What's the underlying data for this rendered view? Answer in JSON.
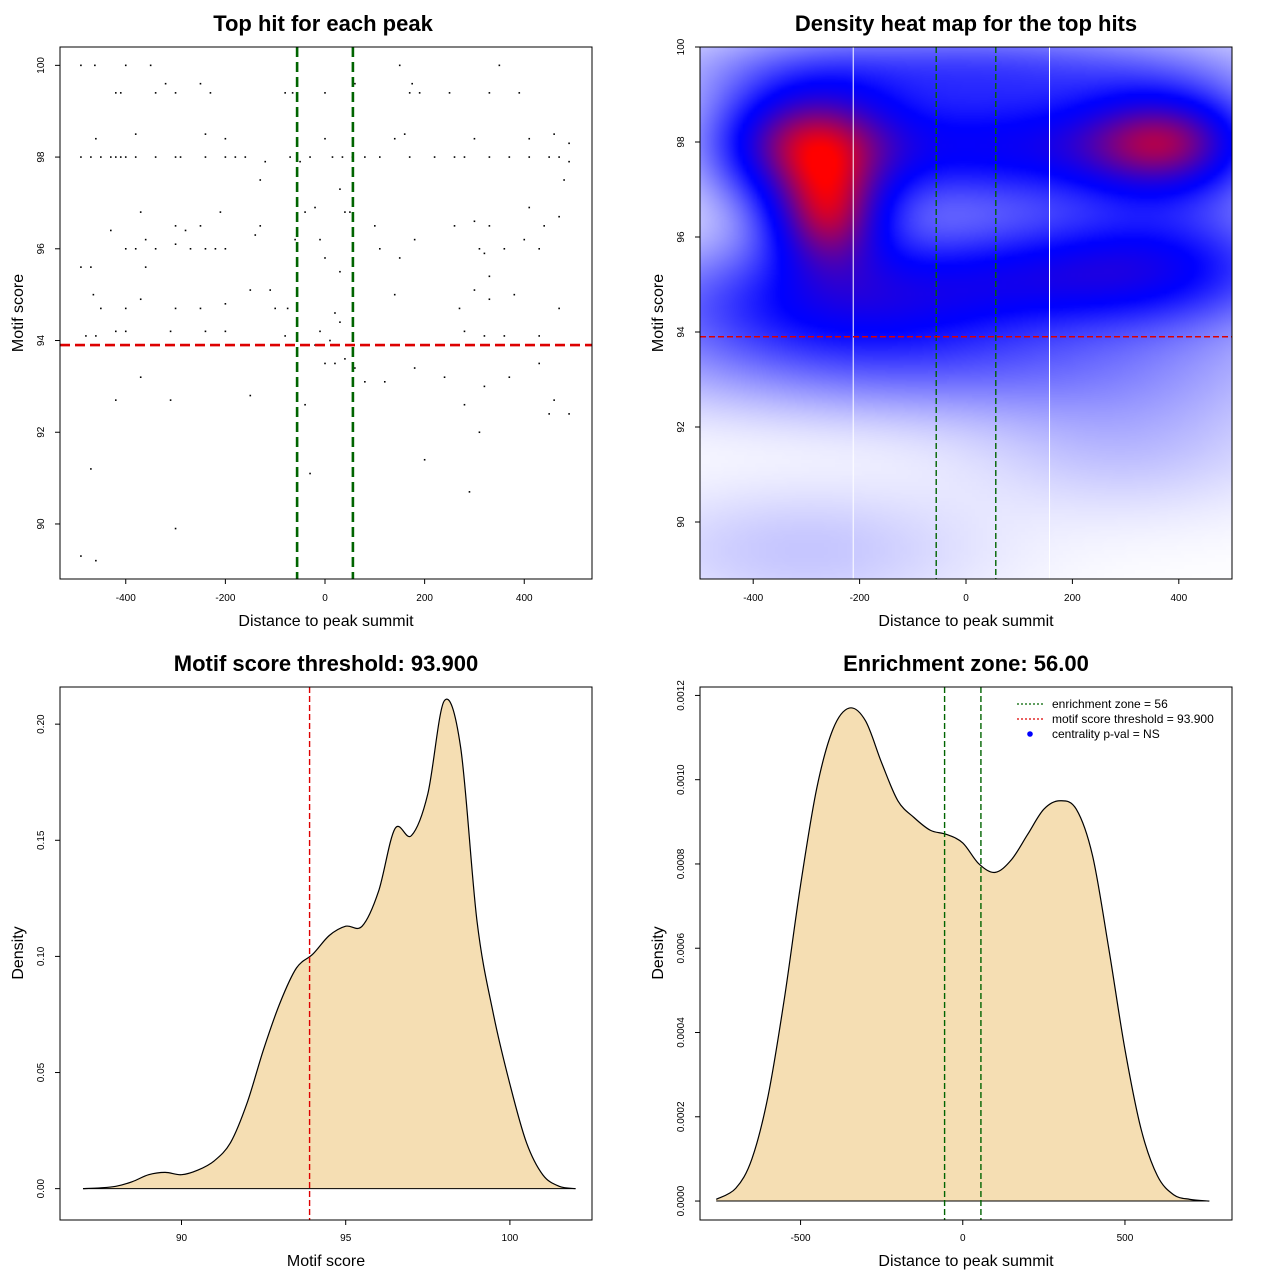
{
  "colors": {
    "green": "#006400",
    "red": "#dd0000",
    "fill": "#f5deb3",
    "hm_low": "#ffffff",
    "hm_mid": "#0000ff",
    "hm_high": "#ff0000"
  },
  "chart_data": [
    {
      "id": "scatter",
      "type": "scatter",
      "title": "Top hit for each peak",
      "xlabel": "Distance to peak summit",
      "ylabel": "Motif score",
      "xlim": [
        -532,
        536
      ],
      "ylim": [
        88.8,
        100.4
      ],
      "xticks": [
        -400,
        -200,
        0,
        200,
        400
      ],
      "xtick_labels": [
        "-400",
        "-200",
        "0",
        "200",
        "400"
      ],
      "yticks": [
        90,
        92,
        94,
        96,
        98,
        100
      ],
      "ytick_labels": [
        "90",
        "92",
        "94",
        "96",
        "98",
        "100"
      ],
      "vlines": [
        -56,
        56
      ],
      "hline": 93.9,
      "points": [
        [
          -490,
          100
        ],
        [
          -462,
          100
        ],
        [
          -400,
          100
        ],
        [
          -350,
          100
        ],
        [
          -320,
          99.6
        ],
        [
          -250,
          99.6
        ],
        [
          -80,
          99.4
        ],
        [
          0,
          99.4
        ],
        [
          60,
          99.6
        ],
        [
          150,
          100
        ],
        [
          175,
          99.6
        ],
        [
          350,
          100
        ],
        [
          -420,
          99.4
        ],
        [
          -410,
          99.4
        ],
        [
          -340,
          99.4
        ],
        [
          -300,
          99.4
        ],
        [
          -230,
          99.4
        ],
        [
          -65,
          99.4
        ],
        [
          170,
          99.4
        ],
        [
          190,
          99.4
        ],
        [
          250,
          99.4
        ],
        [
          330,
          99.4
        ],
        [
          390,
          99.4
        ],
        [
          -460,
          98.4
        ],
        [
          -380,
          98.5
        ],
        [
          -240,
          98.5
        ],
        [
          -200,
          98.4
        ],
        [
          0,
          98.4
        ],
        [
          140,
          98.4
        ],
        [
          160,
          98.5
        ],
        [
          300,
          98.4
        ],
        [
          410,
          98.4
        ],
        [
          460,
          98.5
        ],
        [
          490,
          98.3
        ],
        [
          -490,
          98
        ],
        [
          -470,
          98
        ],
        [
          -450,
          98
        ],
        [
          -430,
          98
        ],
        [
          -420,
          98
        ],
        [
          -410,
          98
        ],
        [
          -400,
          98
        ],
        [
          -380,
          98
        ],
        [
          -340,
          98
        ],
        [
          -300,
          98
        ],
        [
          -290,
          98
        ],
        [
          -240,
          98
        ],
        [
          -200,
          98
        ],
        [
          -180,
          98
        ],
        [
          -160,
          98
        ],
        [
          -120,
          97.9
        ],
        [
          -70,
          98
        ],
        [
          -50,
          97.9
        ],
        [
          -30,
          98
        ],
        [
          15,
          98
        ],
        [
          35,
          98
        ],
        [
          55,
          98
        ],
        [
          80,
          98
        ],
        [
          110,
          98
        ],
        [
          170,
          98
        ],
        [
          220,
          98
        ],
        [
          260,
          98
        ],
        [
          280,
          98
        ],
        [
          330,
          98
        ],
        [
          370,
          98
        ],
        [
          410,
          98
        ],
        [
          450,
          98
        ],
        [
          470,
          98
        ],
        [
          490,
          97.9
        ],
        [
          -130,
          97.5
        ],
        [
          30,
          97.3
        ],
        [
          40,
          96.8
        ],
        [
          50,
          96.8
        ],
        [
          480,
          97.5
        ],
        [
          -370,
          96.8
        ],
        [
          -300,
          96.5
        ],
        [
          -280,
          96.4
        ],
        [
          -250,
          96.5
        ],
        [
          -210,
          96.8
        ],
        [
          -130,
          96.5
        ],
        [
          -40,
          96.8
        ],
        [
          -20,
          96.9
        ],
        [
          100,
          96.5
        ],
        [
          260,
          96.5
        ],
        [
          300,
          96.6
        ],
        [
          330,
          96.5
        ],
        [
          410,
          96.9
        ],
        [
          440,
          96.5
        ],
        [
          470,
          96.7
        ],
        [
          -430,
          96.4
        ],
        [
          -400,
          96
        ],
        [
          -380,
          96
        ],
        [
          -360,
          96.2
        ],
        [
          -340,
          96
        ],
        [
          -300,
          96.1
        ],
        [
          -270,
          96
        ],
        [
          -240,
          96
        ],
        [
          -220,
          96
        ],
        [
          -200,
          96
        ],
        [
          -140,
          96.3
        ],
        [
          -60,
          96.2
        ],
        [
          -10,
          96.2
        ],
        [
          0,
          95.8
        ],
        [
          110,
          96
        ],
        [
          150,
          95.8
        ],
        [
          180,
          96.2
        ],
        [
          310,
          96
        ],
        [
          320,
          95.9
        ],
        [
          360,
          96
        ],
        [
          400,
          96.2
        ],
        [
          430,
          96
        ],
        [
          -490,
          95.6
        ],
        [
          -470,
          95.6
        ],
        [
          -360,
          95.6
        ],
        [
          -110,
          95.1
        ],
        [
          30,
          95.5
        ],
        [
          140,
          95
        ],
        [
          330,
          95.4
        ],
        [
          -465,
          95
        ],
        [
          -450,
          94.7
        ],
        [
          -400,
          94.7
        ],
        [
          -370,
          94.9
        ],
        [
          -300,
          94.7
        ],
        [
          -250,
          94.7
        ],
        [
          -200,
          94.8
        ],
        [
          -150,
          95.1
        ],
        [
          -100,
          94.7
        ],
        [
          -75,
          94.7
        ],
        [
          20,
          94.6
        ],
        [
          30,
          94.4
        ],
        [
          270,
          94.7
        ],
        [
          300,
          95.1
        ],
        [
          330,
          94.9
        ],
        [
          380,
          95
        ],
        [
          470,
          94.7
        ],
        [
          -480,
          94.1
        ],
        [
          -460,
          94.1
        ],
        [
          -420,
          94.2
        ],
        [
          -400,
          94.2
        ],
        [
          -310,
          94.2
        ],
        [
          -240,
          94.2
        ],
        [
          -200,
          94.2
        ],
        [
          -80,
          94.1
        ],
        [
          -10,
          94.2
        ],
        [
          10,
          94
        ],
        [
          280,
          94.2
        ],
        [
          320,
          94.1
        ],
        [
          360,
          94.1
        ],
        [
          430,
          94.1
        ],
        [
          -420,
          92.7
        ],
        [
          -370,
          93.2
        ],
        [
          -310,
          92.7
        ],
        [
          -150,
          92.8
        ],
        [
          -40,
          92.6
        ],
        [
          -20,
          93.9
        ],
        [
          0,
          93.5
        ],
        [
          20,
          93.5
        ],
        [
          40,
          93.6
        ],
        [
          60,
          93.4
        ],
        [
          80,
          93.1
        ],
        [
          120,
          93.1
        ],
        [
          180,
          93.4
        ],
        [
          240,
          93.2
        ],
        [
          280,
          92.6
        ],
        [
          320,
          93
        ],
        [
          370,
          93.2
        ],
        [
          430,
          93.5
        ],
        [
          450,
          92.4
        ],
        [
          460,
          92.7
        ],
        [
          490,
          92.4
        ],
        [
          -30,
          91.1
        ],
        [
          200,
          91.4
        ],
        [
          310,
          92
        ],
        [
          290,
          90.7
        ],
        [
          -470,
          91.2
        ],
        [
          -300,
          89.9
        ],
        [
          -490,
          89.3
        ],
        [
          -460,
          89.2
        ]
      ]
    },
    {
      "id": "heatmap",
      "type": "heatmap",
      "title": "Density heat map for the top hits",
      "xlabel": "Distance to peak summit",
      "ylabel": "Motif score",
      "xlim": [
        -500,
        500
      ],
      "ylim": [
        88.8,
        100
      ],
      "xticks": [
        -400,
        -200,
        0,
        200,
        400
      ],
      "xtick_labels": [
        "-400",
        "-200",
        "0",
        "200",
        "400"
      ],
      "yticks": [
        90,
        92,
        94,
        96,
        98,
        100
      ],
      "ytick_labels": [
        "90",
        "92",
        "94",
        "96",
        "98",
        "100"
      ],
      "vlines": [
        -56,
        56
      ],
      "hline": 93.9,
      "white_vlines": [
        -212,
        157
      ],
      "blobs": [
        {
          "x": -300,
          "y": 98,
          "sx": 120,
          "sy": 0.9,
          "w": 1.0
        },
        {
          "x": -260,
          "y": 96.4,
          "sx": 80,
          "sy": 0.8,
          "w": 0.85
        },
        {
          "x": 380,
          "y": 98,
          "sx": 120,
          "sy": 0.8,
          "w": 0.9
        },
        {
          "x": 60,
          "y": 97.9,
          "sx": 220,
          "sy": 0.9,
          "w": 0.65
        },
        {
          "x": 150,
          "y": 95.2,
          "sx": 260,
          "sy": 0.8,
          "w": 0.45
        },
        {
          "x": -250,
          "y": 94.6,
          "sx": 250,
          "sy": 0.9,
          "w": 0.55
        },
        {
          "x": 380,
          "y": 95.5,
          "sx": 180,
          "sy": 1.0,
          "w": 0.4
        },
        {
          "x": 0,
          "y": 99.6,
          "sx": 340,
          "sy": 0.6,
          "w": 0.35
        },
        {
          "x": 0,
          "y": 93.3,
          "sx": 380,
          "sy": 0.8,
          "w": 0.25
        },
        {
          "x": -300,
          "y": 89.4,
          "sx": 220,
          "sy": 0.9,
          "w": 0.1
        },
        {
          "x": 300,
          "y": 91.8,
          "sx": 200,
          "sy": 1.0,
          "w": 0.12
        }
      ]
    },
    {
      "id": "score_density",
      "type": "area",
      "title": "Motif score threshold: 93.900",
      "xlabel": "Motif score",
      "ylabel": "Density",
      "xlim": [
        86.3,
        102.5
      ],
      "ylim": [
        -0.0135,
        0.216
      ],
      "xticks": [
        90,
        95,
        100
      ],
      "xtick_labels": [
        "90",
        "95",
        "100"
      ],
      "yticks": [
        0,
        0.05,
        0.1,
        0.15,
        0.2
      ],
      "ytick_labels": [
        "0.00",
        "0.05",
        "0.10",
        "0.15",
        "0.20"
      ],
      "vline": 93.9,
      "x": [
        87,
        87.5,
        88,
        88.5,
        89,
        89.5,
        90,
        90.5,
        91,
        91.5,
        92,
        92.5,
        93,
        93.5,
        94,
        94.5,
        95,
        95.5,
        96,
        96.5,
        97,
        97.5,
        98,
        98.5,
        99,
        99.5,
        100,
        100.5,
        101,
        101.5,
        102
      ],
      "y": [
        0,
        0.0003,
        0.001,
        0.003,
        0.006,
        0.007,
        0.006,
        0.008,
        0.012,
        0.02,
        0.037,
        0.06,
        0.08,
        0.095,
        0.101,
        0.109,
        0.113,
        0.113,
        0.128,
        0.155,
        0.152,
        0.17,
        0.21,
        0.19,
        0.115,
        0.075,
        0.045,
        0.02,
        0.006,
        0.001,
        0
      ]
    },
    {
      "id": "distance_density",
      "type": "area",
      "title": "Enrichment zone: 56.00",
      "xlabel": "Distance to peak summit",
      "ylabel": "Density",
      "xlim": [
        -810,
        830
      ],
      "ylim": [
        -4.5e-05,
        0.00122
      ],
      "xticks": [
        -500,
        0,
        500
      ],
      "xtick_labels": [
        "-500",
        "0",
        "500"
      ],
      "yticks": [
        0,
        0.0002,
        0.0004,
        0.0006,
        0.0008,
        0.001,
        0.0012
      ],
      "ytick_labels": [
        "0.0000",
        "0.0002",
        "0.0004",
        "0.0006",
        "0.0008",
        "0.0010",
        "0.0012"
      ],
      "vlines": [
        -56,
        56
      ],
      "x": [
        -760,
        -700,
        -650,
        -600,
        -550,
        -500,
        -450,
        -400,
        -350,
        -300,
        -250,
        -200,
        -150,
        -100,
        -50,
        0,
        50,
        100,
        150,
        200,
        250,
        300,
        350,
        400,
        450,
        500,
        550,
        600,
        650,
        700,
        760
      ],
      "y": [
        4e-06,
        3e-05,
        0.0001,
        0.00025,
        0.00048,
        0.00075,
        0.00098,
        0.00112,
        0.00117,
        0.00114,
        0.00104,
        0.00095,
        0.00091,
        0.00088,
        0.00087,
        0.00085,
        0.0008,
        0.00078,
        0.00081,
        0.00087,
        0.00093,
        0.00095,
        0.00093,
        0.00082,
        0.0006,
        0.00036,
        0.00017,
        6e-05,
        1.5e-05,
        4e-06,
        0
      ]
    }
  ],
  "legend": {
    "items": [
      {
        "label": "enrichment zone = 56",
        "kind": "dotted-line",
        "color": "#006400"
      },
      {
        "label": "motif score threshold = 93.900",
        "kind": "dotted-line",
        "color": "#dd0000"
      },
      {
        "label": "centrality p-val = NS",
        "kind": "dot",
        "color": "#0000ff"
      }
    ]
  }
}
